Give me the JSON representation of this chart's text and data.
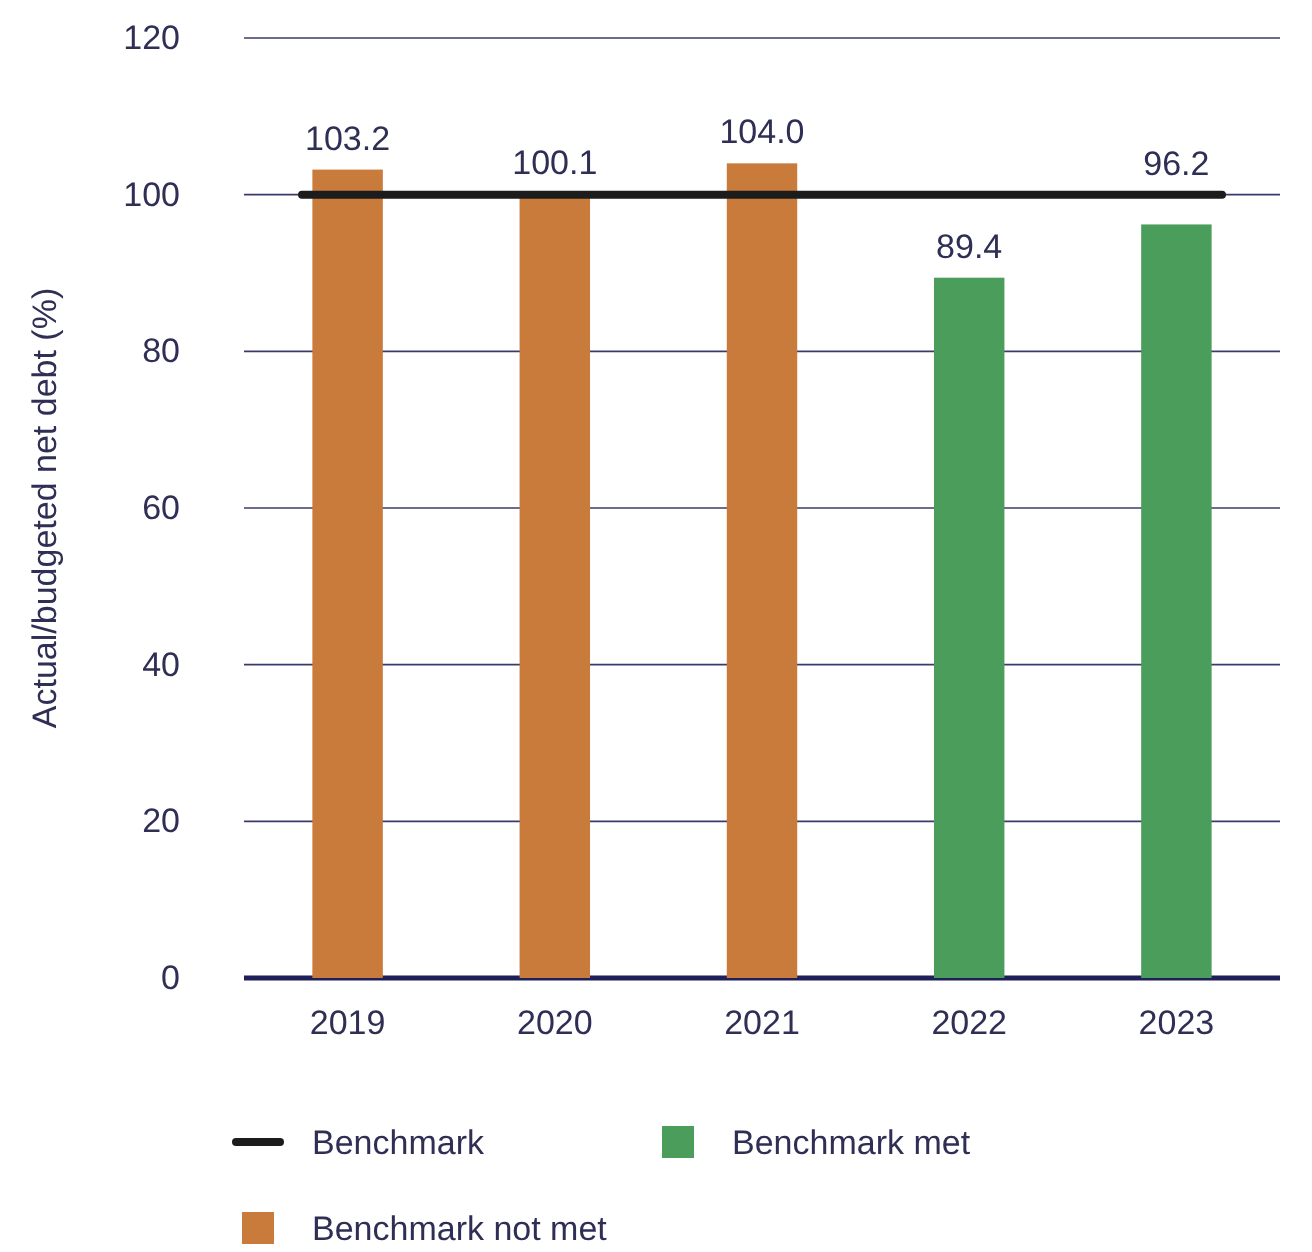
{
  "chart_data": {
    "type": "bar",
    "ylabel": "Actual/budgeted net debt (%)",
    "categories": [
      "2019",
      "2020",
      "2021",
      "2022",
      "2023"
    ],
    "series": [
      {
        "name": "Benchmark met",
        "color": "#4a9d5b",
        "values": [
          null,
          null,
          null,
          89.4,
          96.2
        ],
        "value_labels": [
          null,
          null,
          null,
          "89.4",
          "96.2"
        ]
      },
      {
        "name": "Benchmark not met",
        "color": "#c97b3b",
        "values": [
          103.2,
          100.1,
          104.0,
          null,
          null
        ],
        "value_labels": [
          "103.2",
          "100.1",
          "104.0",
          null,
          null
        ]
      }
    ],
    "ylim": [
      0,
      120
    ],
    "yticks": [
      0,
      20,
      40,
      60,
      80,
      100,
      120
    ],
    "grid": "y",
    "legend": "bottom",
    "ref_lines": [
      {
        "axis": "y",
        "value": 100,
        "label": "Benchmark",
        "color": "#1c1c1c"
      }
    ]
  }
}
